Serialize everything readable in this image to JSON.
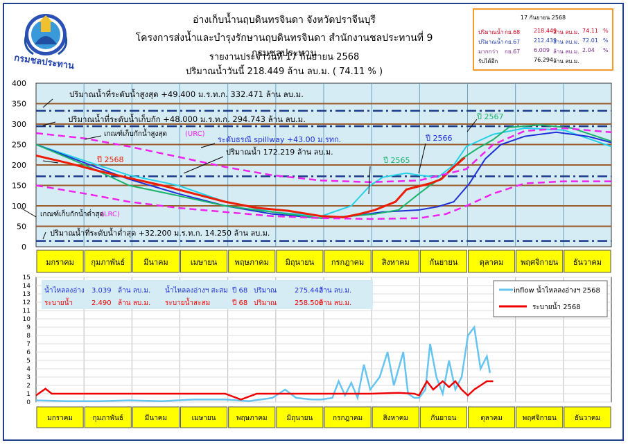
{
  "header": {
    "line1": "อ่างเก็บน้ำนฤบดินทรจินดา จังหวัดปราจีนบุรี",
    "line2": "โครงการส่งน้ำและบำรุงรักษานฤบดินทรจินดา สำนักงานชลประทานที่ 9 กรมชลประทาน",
    "line3": "รายงานประจำวันที่  17  กันยายน 2568",
    "line4": "ปริมาณน้ำวันนี้   218.449   ล้าน ลบ.ม.   ( 74.11 % )",
    "logo_text": "กรมชลประทาน"
  },
  "statbox": {
    "date": "17 กันยายน 2568",
    "rows": [
      {
        "label": "ปริมาณน้ำ",
        "year": "กย.68",
        "value": "218.449",
        "unit": "ล้าน ลบ.ม.",
        "pct": "74.11",
        "pct_unit": "%",
        "color": "#d0021b"
      },
      {
        "label": "ปริมาณน้ำ",
        "year": "กย.67",
        "value": "212.439",
        "unit": "ล้าน ลบ.ม.",
        "pct": "72.01",
        "pct_unit": "%",
        "color": "#1f3fb0"
      },
      {
        "label": "มากกว่า",
        "year": "กย.67",
        "value": "6.009",
        "unit": "ล้าน ลบ.ม.",
        "pct": "2.04",
        "pct_unit": "%",
        "color": "#7b2a8f"
      },
      {
        "label": "รับได้อีก",
        "year": "",
        "value": "76.294",
        "unit": "ล้าน ลบ.ม.",
        "pct": "",
        "pct_unit": "",
        "color": "#000000"
      }
    ]
  },
  "months": [
    "มกราคม",
    "กุมภาพันธ์",
    "มีนาคม",
    "เมษายน",
    "พฤษภาคม",
    "มิถุนายน",
    "กรกฎาคม",
    "สิงหาคม",
    "กันยายน",
    "ตุลาคม",
    "พฤศจิกายน",
    "ธันวาคม"
  ],
  "colors": {
    "y2568": "#ee1c00",
    "y2567": "#1bb36a",
    "y2566": "#1e2fd6",
    "y2565": "#24d0e8",
    "urc": "#ee22ee",
    "inflow": "#66c5f0",
    "release": "#ee0000",
    "panel": "#d6ecf5",
    "month_bar": "#ffff00"
  },
  "chart_data": [
    {
      "type": "line",
      "name": "storage",
      "ylim": [
        0,
        400
      ],
      "yticks": [
        0,
        50,
        100,
        150,
        200,
        250,
        300,
        350,
        400
      ],
      "day_axis": "day of year, 0 = 1 January to 365 = 31 December",
      "annotations": {
        "max": "ปริมาณน้ำที่ระดับน้ำสูงสุด +49.400 ม.ร.ท.ก. 332.471 ล้าน ลบ.ม.",
        "normal": "ปริมาณน้ำที่ระดับน้ำเก็บกัก +48.000 ม.ร.ท.ก. 294.743 ล้าน ลบ.ม.",
        "urc": "เกณฑ์เก็บกักน้ำสูงสุด",
        "urc_tag": "(URC)",
        "spillway": "ระดับธรณี spillway +43.00 ม.รทก.",
        "spillway_vol": "ปริมาณน้ำ 172.219 ล้าน ลบ.ม.",
        "lrc": "เกณฑ์เก็บกักน้ำต่ำสุด",
        "lrc_tag": "(LRC)",
        "min": "ปริมาณน้ำที่ระดับน้ำต่ำสุด +32.200 ม.ร.ท.ก. 14.250 ล้าน ลบ.ม.",
        "lbl2568": "ปี 2568",
        "lbl2567": "ปี 2567",
        "lbl2566": "ปี 2566",
        "lbl2565": "ปี 2565"
      },
      "reference_levels": {
        "max": 332.471,
        "normal": 294.743,
        "spillway": 172.219,
        "min": 14.25
      },
      "brown_lines": [
        350,
        300,
        250,
        200,
        150,
        100,
        50
      ],
      "series": [
        {
          "name": "ปี 2565",
          "key": "y2565",
          "points": [
            [
              0,
              250
            ],
            [
              31,
              210
            ],
            [
              59,
              175
            ],
            [
              90,
              150
            ],
            [
              120,
              110
            ],
            [
              150,
              85
            ],
            [
              181,
              75
            ],
            [
              200,
              100
            ],
            [
              212,
              150
            ],
            [
              220,
              170
            ],
            [
              235,
              180
            ],
            [
              243,
              175
            ],
            [
              255,
              170
            ],
            [
              265,
              200
            ],
            [
              273,
              245
            ],
            [
              290,
              275
            ],
            [
              310,
              290
            ],
            [
              335,
              285
            ],
            [
              365,
              245
            ]
          ]
        },
        {
          "name": "ปี 2566",
          "key": "y2566",
          "points": [
            [
              0,
              250
            ],
            [
              31,
              205
            ],
            [
              59,
              165
            ],
            [
              90,
              130
            ],
            [
              120,
              100
            ],
            [
              150,
              80
            ],
            [
              181,
              70
            ],
            [
              200,
              75
            ],
            [
              220,
              85
            ],
            [
              243,
              90
            ],
            [
              255,
              98
            ],
            [
              265,
              110
            ],
            [
              275,
              155
            ],
            [
              285,
              215
            ],
            [
              295,
              250
            ],
            [
              310,
              270
            ],
            [
              330,
              280
            ],
            [
              350,
              270
            ],
            [
              365,
              255
            ]
          ]
        },
        {
          "name": "ปี 2567",
          "key": "y2567",
          "points": [
            [
              0,
              250
            ],
            [
              31,
              200
            ],
            [
              59,
              150
            ],
            [
              90,
              125
            ],
            [
              120,
              100
            ],
            [
              150,
              85
            ],
            [
              181,
              70
            ],
            [
              200,
              75
            ],
            [
              215,
              80
            ],
            [
              230,
              90
            ],
            [
              243,
              130
            ],
            [
              250,
              150
            ],
            [
              260,
              175
            ],
            [
              270,
              215
            ],
            [
              280,
              240
            ],
            [
              290,
              262
            ],
            [
              300,
              292
            ],
            [
              320,
              298
            ],
            [
              340,
              290
            ],
            [
              365,
              258
            ]
          ]
        },
        {
          "name": "ปี 2568",
          "key": "y2568",
          "points": [
            [
              0,
              223
            ],
            [
              20,
              205
            ],
            [
              40,
              185
            ],
            [
              59,
              168
            ],
            [
              80,
              150
            ],
            [
              100,
              130
            ],
            [
              120,
              110
            ],
            [
              140,
              95
            ],
            [
              160,
              88
            ],
            [
              181,
              75
            ],
            [
              195,
              72
            ],
            [
              205,
              80
            ],
            [
              215,
              90
            ],
            [
              228,
              110
            ],
            [
              235,
              140
            ],
            [
              245,
              150
            ],
            [
              250,
              155
            ],
            [
              257,
              165
            ],
            [
              265,
              195
            ],
            [
              272,
              218
            ]
          ]
        },
        {
          "name": "URC",
          "key": "urc",
          "dashed": true,
          "points": [
            [
              0,
              278
            ],
            [
              31,
              265
            ],
            [
              59,
              245
            ],
            [
              90,
              220
            ],
            [
              120,
              195
            ],
            [
              150,
              175
            ],
            [
              181,
              162
            ],
            [
              212,
              158
            ],
            [
              243,
              162
            ],
            [
              273,
              190
            ],
            [
              290,
              250
            ],
            [
              310,
              283
            ],
            [
              335,
              290
            ],
            [
              365,
              280
            ]
          ]
        },
        {
          "name": "LRC",
          "key": "urc",
          "dashed": true,
          "points": [
            [
              0,
              150
            ],
            [
              31,
              130
            ],
            [
              59,
              110
            ],
            [
              90,
              95
            ],
            [
              120,
              85
            ],
            [
              150,
              75
            ],
            [
              181,
              70
            ],
            [
              212,
              68
            ],
            [
              243,
              70
            ],
            [
              260,
              80
            ],
            [
              273,
              100
            ],
            [
              290,
              130
            ],
            [
              310,
              155
            ],
            [
              335,
              160
            ],
            [
              365,
              160
            ]
          ]
        }
      ]
    },
    {
      "type": "line",
      "name": "flow",
      "ylim": [
        0,
        15
      ],
      "yticks": [
        0,
        1,
        2,
        3,
        4,
        5,
        6,
        7,
        8,
        9,
        10,
        11,
        12,
        13,
        14,
        15
      ],
      "info": {
        "r1c1": "น้ำไหลลงอ่าง",
        "r1c2": "3.039",
        "r1c3": "ล้าน ลบ.ม.",
        "r1c4": "น้ำไหลลงอ่างฯ สะสม",
        "r1c5": "ปี 68",
        "r1c6": "ปริมาณ",
        "r1c7": "275.443",
        "r1c8": "ล้าน ลบ.ม.",
        "r2c1": "ระบายน้ำ",
        "r2c2": "2.490",
        "r2c3": "ล้าน ลบ.ม.",
        "r2c4": "ระบายน้ำสะสม",
        "r2c5": "ปี 68",
        "r2c6": "ปริมาณ",
        "r2c7": "258.500",
        "r2c8": "ล้าน ลบ.ม."
      },
      "legend": [
        "inflow น้ำไหลลงอ่างฯ 2568",
        "ระบายน้ำ 2568"
      ],
      "series": [
        {
          "name": "inflow น้ำไหลลงอ่างฯ 2568",
          "key": "inflow",
          "points": [
            [
              0,
              0.2
            ],
            [
              20,
              0.1
            ],
            [
              40,
              0.1
            ],
            [
              59,
              0.2
            ],
            [
              80,
              0.1
            ],
            [
              100,
              0.3
            ],
            [
              120,
              0.3
            ],
            [
              135,
              0.1
            ],
            [
              150,
              0.5
            ],
            [
              158,
              1.5
            ],
            [
              165,
              0.5
            ],
            [
              175,
              0.3
            ],
            [
              181,
              0.3
            ],
            [
              188,
              0.5
            ],
            [
              192,
              2.5
            ],
            [
              196,
              0.8
            ],
            [
              200,
              2.3
            ],
            [
              204,
              0.5
            ],
            [
              208,
              4.5
            ],
            [
              212,
              1.5
            ],
            [
              218,
              3.0
            ],
            [
              223,
              6.0
            ],
            [
              227,
              2.0
            ],
            [
              233,
              6.0
            ],
            [
              236,
              1.0
            ],
            [
              240,
              0.5
            ],
            [
              243,
              0.5
            ],
            [
              247,
              1.5
            ],
            [
              250,
              7.0
            ],
            [
              254,
              3.0
            ],
            [
              258,
              1.0
            ],
            [
              262,
              5.0
            ],
            [
              266,
              1.5
            ],
            [
              270,
              3.0
            ],
            [
              274,
              8.0
            ],
            [
              278,
              9.0
            ],
            [
              282,
              4.0
            ],
            [
              286,
              5.5
            ],
            [
              288,
              3.5
            ]
          ]
        },
        {
          "name": "ระบายน้ำ 2568",
          "key": "release",
          "points": [
            [
              0,
              0.8
            ],
            [
              6,
              1.6
            ],
            [
              10,
              1.0
            ],
            [
              15,
              1.0
            ],
            [
              40,
              1.0
            ],
            [
              59,
              1.0
            ],
            [
              80,
              1.0
            ],
            [
              100,
              1.0
            ],
            [
              120,
              1.0
            ],
            [
              130,
              0.3
            ],
            [
              140,
              1.0
            ],
            [
              160,
              1.0
            ],
            [
              181,
              1.0
            ],
            [
              212,
              1.0
            ],
            [
              230,
              1.1
            ],
            [
              240,
              1.0
            ],
            [
              243,
              0.8
            ],
            [
              248,
              2.5
            ],
            [
              252,
              1.5
            ],
            [
              258,
              2.5
            ],
            [
              262,
              1.8
            ],
            [
              266,
              2.5
            ],
            [
              270,
              1.5
            ],
            [
              274,
              0.8
            ],
            [
              278,
              1.5
            ],
            [
              282,
              2.0
            ],
            [
              286,
              2.5
            ],
            [
              290,
              2.5
            ]
          ]
        }
      ]
    }
  ]
}
